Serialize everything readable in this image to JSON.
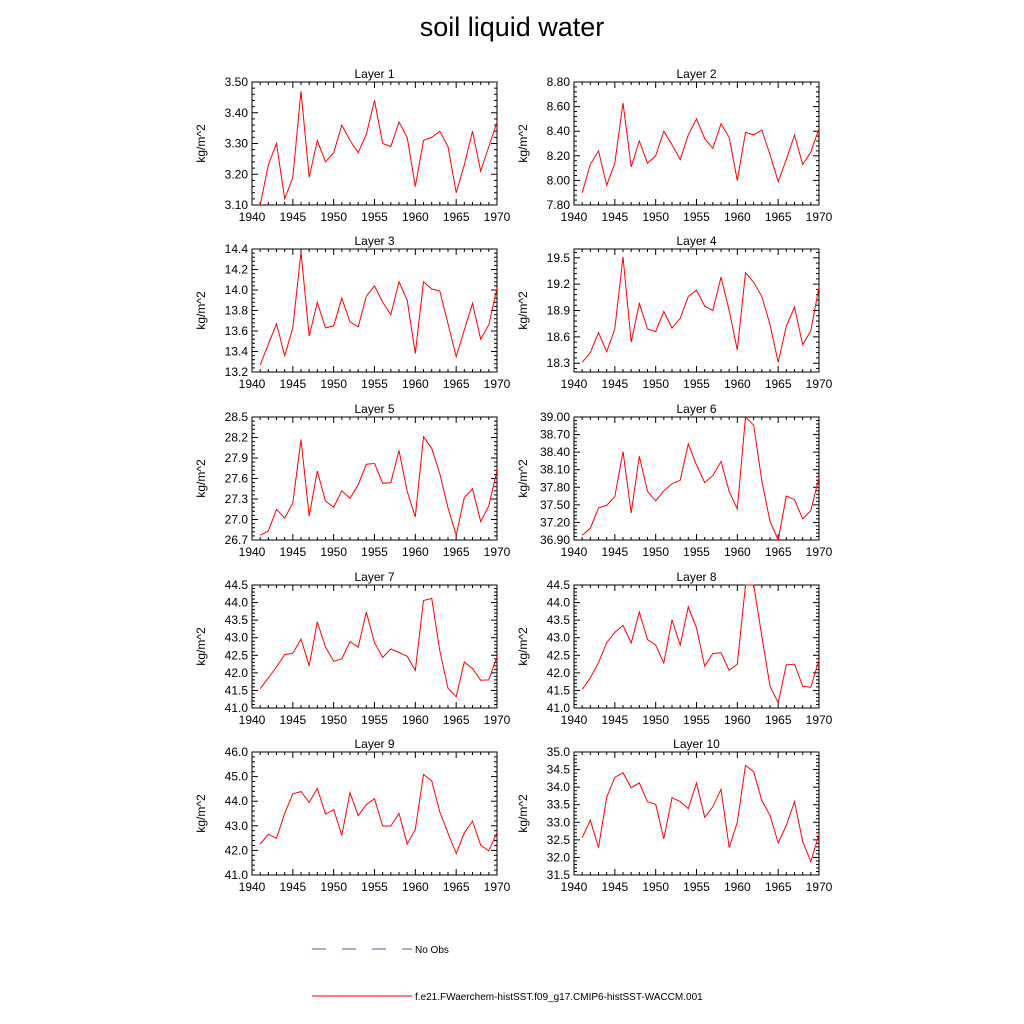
{
  "title": "soil liquid water",
  "legend": {
    "obs_label": "No Obs",
    "model_label": "f.e21.FWaerchem-histSST.f09_g17.CMIP6-histSST-WACCM.001",
    "obs_color": "#5a5aa0",
    "model_color": "#ff0000"
  },
  "colors": {
    "line": "#ff0000",
    "axis": "#000000"
  },
  "chart_data": [
    {
      "type": "line",
      "title": "Layer 1",
      "ylabel": "kg/m^2",
      "xlim": [
        1940,
        1970
      ],
      "ylim": [
        3.1,
        3.5
      ],
      "xticks": [
        "1940",
        "1945",
        "1950",
        "1955",
        "1960",
        "1965",
        "1970"
      ],
      "xtick_values": [
        1940,
        1945,
        1950,
        1955,
        1960,
        1965,
        1970
      ],
      "yticks": [
        "3.10",
        "3.20",
        "3.30",
        "3.40",
        "3.50"
      ],
      "ytick_values": [
        3.1,
        3.2,
        3.3,
        3.4,
        3.5
      ],
      "x": [
        1941,
        1942,
        1943,
        1944,
        1945,
        1946,
        1947,
        1948,
        1949,
        1950,
        1951,
        1952,
        1953,
        1954,
        1955,
        1956,
        1957,
        1958,
        1959,
        1960,
        1961,
        1962,
        1963,
        1964,
        1965,
        1966,
        1967,
        1968,
        1969,
        1970
      ],
      "y": [
        3.1,
        3.23,
        3.3,
        3.12,
        3.19,
        3.47,
        3.19,
        3.31,
        3.24,
        3.27,
        3.36,
        3.31,
        3.27,
        3.33,
        3.44,
        3.3,
        3.29,
        3.37,
        3.32,
        3.16,
        3.31,
        3.32,
        3.34,
        3.29,
        3.14,
        3.23,
        3.34,
        3.21,
        3.29,
        3.37
      ]
    },
    {
      "type": "line",
      "title": "Layer 2",
      "ylabel": "kg/m^2",
      "xlim": [
        1940,
        1970
      ],
      "ylim": [
        7.8,
        8.8
      ],
      "xticks": [
        "1940",
        "1945",
        "1950",
        "1955",
        "1960",
        "1965",
        "1970"
      ],
      "xtick_values": [
        1940,
        1945,
        1950,
        1955,
        1960,
        1965,
        1970
      ],
      "yticks": [
        "7.80",
        "8.00",
        "8.20",
        "8.40",
        "8.60",
        "8.80"
      ],
      "ytick_values": [
        7.8,
        8.0,
        8.2,
        8.4,
        8.6,
        8.8
      ],
      "x": [
        1941,
        1942,
        1943,
        1944,
        1945,
        1946,
        1947,
        1948,
        1949,
        1950,
        1951,
        1952,
        1953,
        1954,
        1955,
        1956,
        1957,
        1958,
        1959,
        1960,
        1961,
        1962,
        1963,
        1964,
        1965,
        1966,
        1967,
        1968,
        1969,
        1970
      ],
      "y": [
        7.9,
        8.13,
        8.24,
        7.96,
        8.14,
        8.63,
        8.11,
        8.32,
        8.14,
        8.2,
        8.4,
        8.29,
        8.17,
        8.37,
        8.5,
        8.34,
        8.26,
        8.46,
        8.35,
        8.0,
        8.39,
        8.37,
        8.41,
        8.21,
        7.99,
        8.17,
        8.37,
        8.13,
        8.23,
        8.42
      ]
    },
    {
      "type": "line",
      "title": "Layer 3",
      "ylabel": "kg/m^2",
      "xlim": [
        1940,
        1970
      ],
      "ylim": [
        13.2,
        14.4
      ],
      "xticks": [
        "1940",
        "1945",
        "1950",
        "1955",
        "1960",
        "1965",
        "1970"
      ],
      "xtick_values": [
        1940,
        1945,
        1950,
        1955,
        1960,
        1965,
        1970
      ],
      "yticks": [
        "13.2",
        "13.4",
        "13.6",
        "13.8",
        "14.0",
        "14.2",
        "14.4"
      ],
      "ytick_values": [
        13.2,
        13.4,
        13.6,
        13.8,
        14.0,
        14.2,
        14.4
      ],
      "x": [
        1941,
        1942,
        1943,
        1944,
        1945,
        1946,
        1947,
        1948,
        1949,
        1950,
        1951,
        1952,
        1953,
        1954,
        1955,
        1956,
        1957,
        1958,
        1959,
        1960,
        1961,
        1962,
        1963,
        1964,
        1965,
        1966,
        1967,
        1968,
        1969,
        1970
      ],
      "y": [
        13.27,
        13.47,
        13.67,
        13.36,
        13.63,
        14.37,
        13.55,
        13.88,
        13.63,
        13.65,
        13.92,
        13.69,
        13.64,
        13.94,
        14.04,
        13.88,
        13.76,
        14.08,
        13.9,
        13.38,
        14.08,
        14.01,
        13.99,
        13.67,
        13.35,
        13.61,
        13.87,
        13.52,
        13.66,
        14.02
      ]
    },
    {
      "type": "line",
      "title": "Layer 4",
      "ylabel": "kg/m^2",
      "xlim": [
        1940,
        1970
      ],
      "ylim": [
        18.2,
        19.6
      ],
      "xticks": [
        "1940",
        "1945",
        "1950",
        "1955",
        "1960",
        "1965",
        "1970"
      ],
      "xtick_values": [
        1940,
        1945,
        1950,
        1955,
        1960,
        1965,
        1970
      ],
      "yticks": [
        "18.3",
        "18.6",
        "18.9",
        "19.2",
        "19.5"
      ],
      "ytick_values": [
        18.3,
        18.6,
        18.9,
        19.2,
        19.5
      ],
      "x": [
        1941,
        1942,
        1943,
        1944,
        1945,
        1946,
        1947,
        1948,
        1949,
        1950,
        1951,
        1952,
        1953,
        1954,
        1955,
        1956,
        1957,
        1958,
        1959,
        1960,
        1961,
        1962,
        1963,
        1964,
        1965,
        1966,
        1967,
        1968,
        1969,
        1970
      ],
      "y": [
        18.31,
        18.42,
        18.65,
        18.43,
        18.69,
        19.51,
        18.54,
        18.98,
        18.69,
        18.66,
        18.89,
        18.7,
        18.81,
        19.06,
        19.13,
        18.95,
        18.9,
        19.28,
        18.9,
        18.45,
        19.33,
        19.22,
        19.06,
        18.74,
        18.31,
        18.72,
        18.94,
        18.51,
        18.67,
        19.17
      ]
    },
    {
      "type": "line",
      "title": "Layer 5",
      "ylabel": "kg/m^2",
      "xlim": [
        1940,
        1970
      ],
      "ylim": [
        26.7,
        28.5
      ],
      "xticks": [
        "1940",
        "1945",
        "1950",
        "1955",
        "1960",
        "1965",
        "1970"
      ],
      "xtick_values": [
        1940,
        1945,
        1950,
        1955,
        1960,
        1965,
        1970
      ],
      "yticks": [
        "26.7",
        "27.0",
        "27.3",
        "27.6",
        "27.9",
        "28.2",
        "28.5"
      ],
      "ytick_values": [
        26.7,
        27.0,
        27.3,
        27.6,
        27.9,
        28.2,
        28.5
      ],
      "x": [
        1941,
        1942,
        1943,
        1944,
        1945,
        1946,
        1947,
        1948,
        1949,
        1950,
        1951,
        1952,
        1953,
        1954,
        1955,
        1956,
        1957,
        1958,
        1959,
        1960,
        1961,
        1962,
        1963,
        1964,
        1965,
        1966,
        1967,
        1968,
        1969,
        1970
      ],
      "y": [
        26.77,
        26.83,
        27.15,
        27.02,
        27.24,
        28.17,
        27.05,
        27.71,
        27.27,
        27.18,
        27.42,
        27.31,
        27.51,
        27.81,
        27.82,
        27.53,
        27.54,
        28.01,
        27.41,
        27.04,
        28.21,
        28.04,
        27.67,
        27.17,
        26.77,
        27.32,
        27.45,
        26.97,
        27.2,
        27.72
      ]
    },
    {
      "type": "line",
      "title": "Layer 6",
      "ylabel": "kg/m^2",
      "xlim": [
        1940,
        1970
      ],
      "ylim": [
        36.9,
        39.0
      ],
      "xticks": [
        "1940",
        "1945",
        "1950",
        "1955",
        "1960",
        "1965",
        "1970"
      ],
      "xtick_values": [
        1940,
        1945,
        1950,
        1955,
        1960,
        1965,
        1970
      ],
      "yticks": [
        "36.90",
        "37.20",
        "37.50",
        "37.80",
        "38.10",
        "38.40",
        "38.70",
        "39.00"
      ],
      "ytick_values": [
        36.9,
        37.2,
        37.5,
        37.8,
        38.1,
        38.4,
        38.7,
        39.0
      ],
      "x": [
        1941,
        1942,
        1943,
        1944,
        1945,
        1946,
        1947,
        1948,
        1949,
        1950,
        1951,
        1952,
        1953,
        1954,
        1955,
        1956,
        1957,
        1958,
        1959,
        1960,
        1961,
        1962,
        1963,
        1964,
        1965,
        1966,
        1967,
        1968,
        1969,
        1970
      ],
      "y": [
        36.98,
        37.1,
        37.45,
        37.49,
        37.64,
        38.41,
        37.36,
        38.33,
        37.73,
        37.57,
        37.74,
        37.86,
        37.92,
        38.54,
        38.18,
        37.88,
        38.0,
        38.24,
        37.73,
        37.43,
        39.0,
        38.86,
        37.91,
        37.22,
        36.9,
        37.65,
        37.59,
        37.26,
        37.4,
        37.97
      ]
    },
    {
      "type": "line",
      "title": "Layer 7",
      "ylabel": "kg/m^2",
      "xlim": [
        1940,
        1970
      ],
      "ylim": [
        41.0,
        44.5
      ],
      "xticks": [
        "1940",
        "1945",
        "1950",
        "1955",
        "1960",
        "1965",
        "1970"
      ],
      "xtick_values": [
        1940,
        1945,
        1950,
        1955,
        1960,
        1965,
        1970
      ],
      "yticks": [
        "41.0",
        "41.5",
        "42.0",
        "42.5",
        "43.0",
        "43.5",
        "44.0",
        "44.5"
      ],
      "ytick_values": [
        41.0,
        41.5,
        42.0,
        42.5,
        43.0,
        43.5,
        44.0,
        44.5
      ],
      "x": [
        1941,
        1942,
        1943,
        1944,
        1945,
        1946,
        1947,
        1948,
        1949,
        1950,
        1951,
        1952,
        1953,
        1954,
        1955,
        1956,
        1957,
        1958,
        1959,
        1960,
        1961,
        1962,
        1963,
        1964,
        1965,
        1966,
        1967,
        1968,
        1969,
        1970
      ],
      "y": [
        41.55,
        41.85,
        42.17,
        42.52,
        42.56,
        42.96,
        42.2,
        43.45,
        42.73,
        42.33,
        42.4,
        42.89,
        42.73,
        43.73,
        42.86,
        42.44,
        42.68,
        42.58,
        42.47,
        42.07,
        44.06,
        44.12,
        42.63,
        41.56,
        41.32,
        42.31,
        42.12,
        41.79,
        41.8,
        42.46
      ]
    },
    {
      "type": "line",
      "title": "Layer 8",
      "ylabel": "kg/m^2",
      "xlim": [
        1940,
        1970
      ],
      "ylim": [
        41.0,
        44.5
      ],
      "xticks": [
        "1940",
        "1945",
        "1950",
        "1955",
        "1960",
        "1965",
        "1970"
      ],
      "xtick_values": [
        1940,
        1945,
        1950,
        1955,
        1960,
        1965,
        1970
      ],
      "yticks": [
        "41.0",
        "41.5",
        "42.0",
        "42.5",
        "43.0",
        "43.5",
        "44.0",
        "44.5"
      ],
      "ytick_values": [
        41.0,
        41.5,
        42.0,
        42.5,
        43.0,
        43.5,
        44.0,
        44.5
      ],
      "x": [
        1941,
        1942,
        1943,
        1944,
        1945,
        1946,
        1947,
        1948,
        1949,
        1950,
        1951,
        1952,
        1953,
        1954,
        1955,
        1956,
        1957,
        1958,
        1959,
        1960,
        1961,
        1962,
        1963,
        1964,
        1965,
        1966,
        1967,
        1968,
        1969,
        1970
      ],
      "y": [
        41.53,
        41.86,
        42.29,
        42.86,
        43.15,
        43.35,
        42.85,
        43.73,
        42.95,
        42.79,
        42.28,
        43.51,
        42.79,
        43.88,
        43.28,
        42.19,
        42.55,
        42.57,
        42.07,
        42.25,
        44.5,
        44.5,
        43.05,
        41.62,
        41.15,
        42.23,
        42.25,
        41.62,
        41.59,
        42.37
      ]
    },
    {
      "type": "line",
      "title": "Layer 9",
      "ylabel": "kg/m^2",
      "xlim": [
        1940,
        1970
      ],
      "ylim": [
        41.0,
        46.0
      ],
      "xticks": [
        "1940",
        "1945",
        "1950",
        "1955",
        "1960",
        "1965",
        "1970"
      ],
      "xtick_values": [
        1940,
        1945,
        1950,
        1955,
        1960,
        1965,
        1970
      ],
      "yticks": [
        "41.0",
        "42.0",
        "43.0",
        "44.0",
        "45.0",
        "46.0"
      ],
      "ytick_values": [
        41.0,
        42.0,
        43.0,
        44.0,
        45.0,
        46.0
      ],
      "x": [
        1941,
        1942,
        1943,
        1944,
        1945,
        1946,
        1947,
        1948,
        1949,
        1950,
        1951,
        1952,
        1953,
        1954,
        1955,
        1956,
        1957,
        1958,
        1959,
        1960,
        1961,
        1962,
        1963,
        1964,
        1965,
        1966,
        1967,
        1968,
        1969,
        1970
      ],
      "y": [
        42.26,
        42.66,
        42.49,
        43.51,
        44.3,
        44.39,
        43.95,
        44.52,
        43.47,
        43.66,
        42.61,
        44.35,
        43.41,
        43.86,
        44.1,
        42.99,
        42.99,
        43.51,
        42.26,
        42.85,
        45.09,
        44.83,
        43.56,
        42.7,
        41.88,
        42.71,
        43.19,
        42.21,
        41.98,
        42.73
      ]
    },
    {
      "type": "line",
      "title": "Layer 10",
      "ylabel": "kg/m^2",
      "xlim": [
        1940,
        1970
      ],
      "ylim": [
        31.5,
        35.0
      ],
      "xticks": [
        "1940",
        "1945",
        "1950",
        "1955",
        "1960",
        "1965",
        "1970"
      ],
      "xtick_values": [
        1940,
        1945,
        1950,
        1955,
        1960,
        1965,
        1970
      ],
      "yticks": [
        "31.5",
        "32.0",
        "32.5",
        "33.0",
        "33.5",
        "34.0",
        "34.5",
        "35.0"
      ],
      "ytick_values": [
        31.5,
        32.0,
        32.5,
        33.0,
        33.5,
        34.0,
        34.5,
        35.0
      ],
      "x": [
        1941,
        1942,
        1943,
        1944,
        1945,
        1946,
        1947,
        1948,
        1949,
        1950,
        1951,
        1952,
        1953,
        1954,
        1955,
        1956,
        1957,
        1958,
        1959,
        1960,
        1961,
        1962,
        1963,
        1964,
        1965,
        1966,
        1967,
        1968,
        1969,
        1970
      ],
      "y": [
        32.56,
        33.06,
        32.28,
        33.71,
        34.28,
        34.41,
        33.98,
        34.12,
        33.58,
        33.51,
        32.53,
        33.7,
        33.59,
        33.39,
        34.12,
        33.14,
        33.44,
        33.94,
        32.28,
        33.0,
        34.62,
        34.44,
        33.62,
        33.2,
        32.41,
        32.91,
        33.59,
        32.45,
        31.88,
        32.66
      ]
    }
  ]
}
